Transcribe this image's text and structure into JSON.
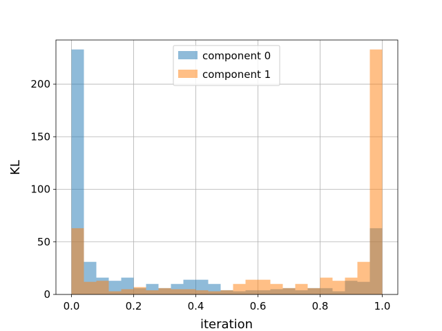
{
  "chart_data": {
    "type": "bar",
    "subtype": "overlapping-histogram",
    "title": "",
    "xlabel": "iteration",
    "ylabel": "KL",
    "xlim": [
      -0.05,
      1.05
    ],
    "ylim": [
      0,
      242
    ],
    "xticks": [
      0.0,
      0.2,
      0.4,
      0.6,
      0.8,
      1.0
    ],
    "xtick_labels": [
      "0.0",
      "0.2",
      "0.4",
      "0.6",
      "0.8",
      "1.0"
    ],
    "yticks": [
      0,
      50,
      100,
      150,
      200
    ],
    "ytick_labels": [
      "0",
      "50",
      "100",
      "150",
      "200"
    ],
    "grid": true,
    "legend": "top-center",
    "bin_edges": [
      0.0,
      0.04,
      0.08,
      0.12,
      0.16,
      0.2,
      0.24,
      0.28,
      0.32,
      0.36,
      0.4,
      0.44,
      0.48,
      0.52,
      0.56,
      0.6,
      0.64,
      0.68,
      0.72,
      0.76,
      0.8,
      0.84,
      0.88,
      0.92,
      0.96,
      1.0
    ],
    "series": [
      {
        "name": "component 0",
        "color": "#1f77b4",
        "alpha": 0.5,
        "values": [
          233,
          31,
          16,
          13,
          16,
          6,
          10,
          6,
          10,
          14,
          14,
          10,
          4,
          3,
          4,
          4,
          5,
          6,
          4,
          6,
          6,
          3,
          13,
          12,
          63
        ]
      },
      {
        "name": "component 1",
        "color": "#ff7f0e",
        "alpha": 0.5,
        "values": [
          63,
          12,
          13,
          3,
          5,
          7,
          4,
          6,
          5,
          5,
          4,
          3,
          4,
          10,
          14,
          14,
          10,
          6,
          10,
          6,
          16,
          13,
          16,
          31,
          233
        ]
      }
    ]
  }
}
